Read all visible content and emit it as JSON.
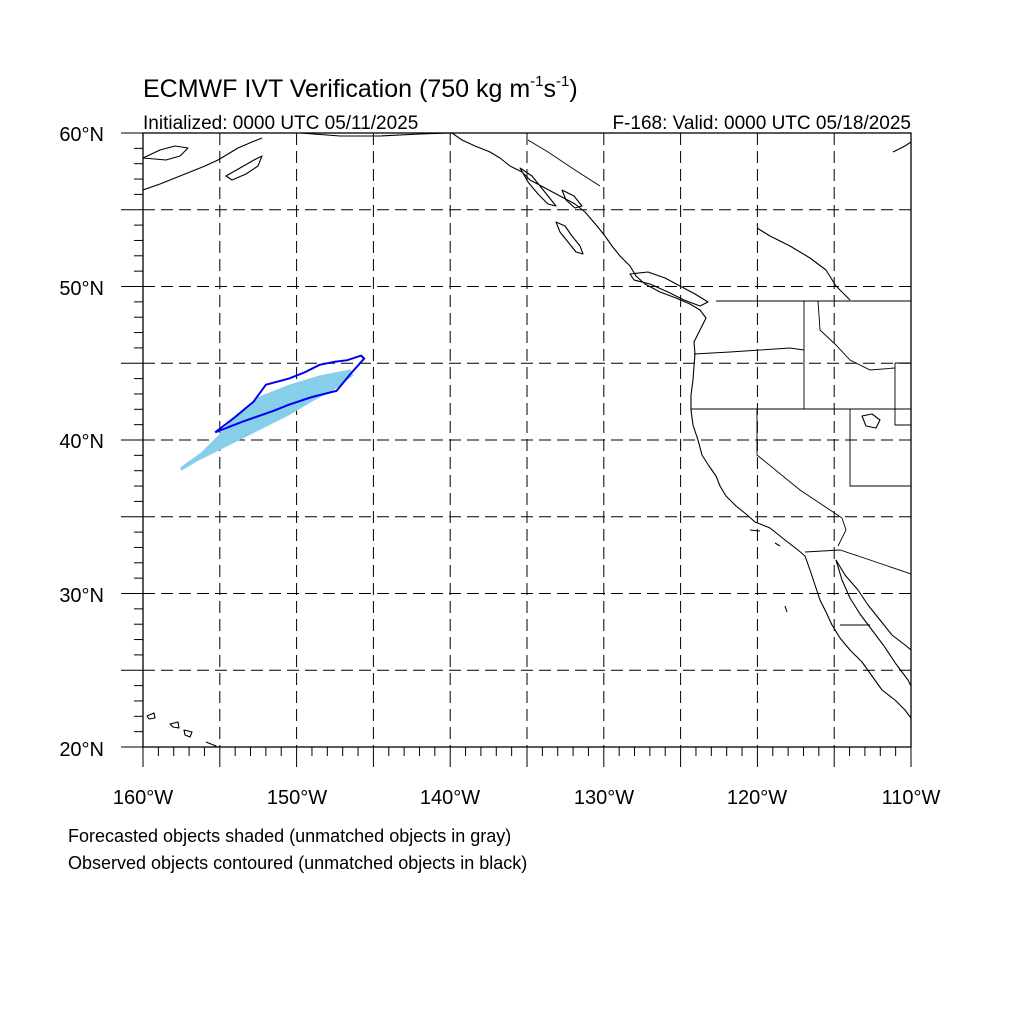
{
  "title": {
    "main": "ECMWF IVT Verification (750 kg m",
    "exp1": "-1",
    "mid": "s",
    "exp2": "-1",
    "end": ")"
  },
  "initialized": "Initialized: 0000 UTC 05/11/2025",
  "valid": "F-168: Valid: 0000 UTC 05/18/2025",
  "lat_labels": [
    "60°N",
    "50°N",
    "40°N",
    "30°N",
    "20°N"
  ],
  "lon_labels": [
    "160°W",
    "150°W",
    "140°W",
    "130°W",
    "120°W",
    "110°W"
  ],
  "footnotes": [
    "Forecasted objects shaded (unmatched objects in gray)",
    "Observed objects contoured (unmatched objects in black)"
  ],
  "map": {
    "extent": {
      "lon_min": -160,
      "lon_max": -110,
      "lat_min": 20,
      "lat_max": 60
    },
    "colors": {
      "forecast_fill": "#87CEEB",
      "observed_contour": "#0000EE",
      "coastline": "#000000",
      "grid": "#000000"
    },
    "forecast_object": {
      "matched": true,
      "polygon": [
        [
          -157.5,
          38.0
        ],
        [
          -156.5,
          38.6
        ],
        [
          -154.5,
          39.6
        ],
        [
          -152.5,
          40.6
        ],
        [
          -150.5,
          41.6
        ],
        [
          -149.0,
          42.5
        ],
        [
          -147.5,
          43.3
        ],
        [
          -146.3,
          44.2
        ],
        [
          -146.5,
          44.6
        ],
        [
          -148.5,
          44.2
        ],
        [
          -150.5,
          43.6
        ],
        [
          -152.5,
          42.8
        ],
        [
          -154.0,
          41.6
        ],
        [
          -155.0,
          40.4
        ],
        [
          -156.2,
          39.2
        ],
        [
          -157.6,
          38.2
        ]
      ]
    },
    "observed_object": {
      "matched": true,
      "polygon": [
        [
          -155.3,
          40.5
        ],
        [
          -154.0,
          41.5
        ],
        [
          -152.8,
          42.5
        ],
        [
          -152.0,
          43.6
        ],
        [
          -150.5,
          44.0
        ],
        [
          -149.5,
          44.4
        ],
        [
          -148.5,
          44.9
        ],
        [
          -147.5,
          45.1
        ],
        [
          -146.7,
          45.2
        ],
        [
          -145.8,
          45.5
        ],
        [
          -145.6,
          45.3
        ],
        [
          -146.5,
          44.3
        ],
        [
          -147.4,
          43.2
        ],
        [
          -149.0,
          42.8
        ],
        [
          -150.5,
          42.3
        ],
        [
          -151.5,
          41.9
        ],
        [
          -153.5,
          41.2
        ],
        [
          -155.3,
          40.5
        ]
      ]
    }
  }
}
